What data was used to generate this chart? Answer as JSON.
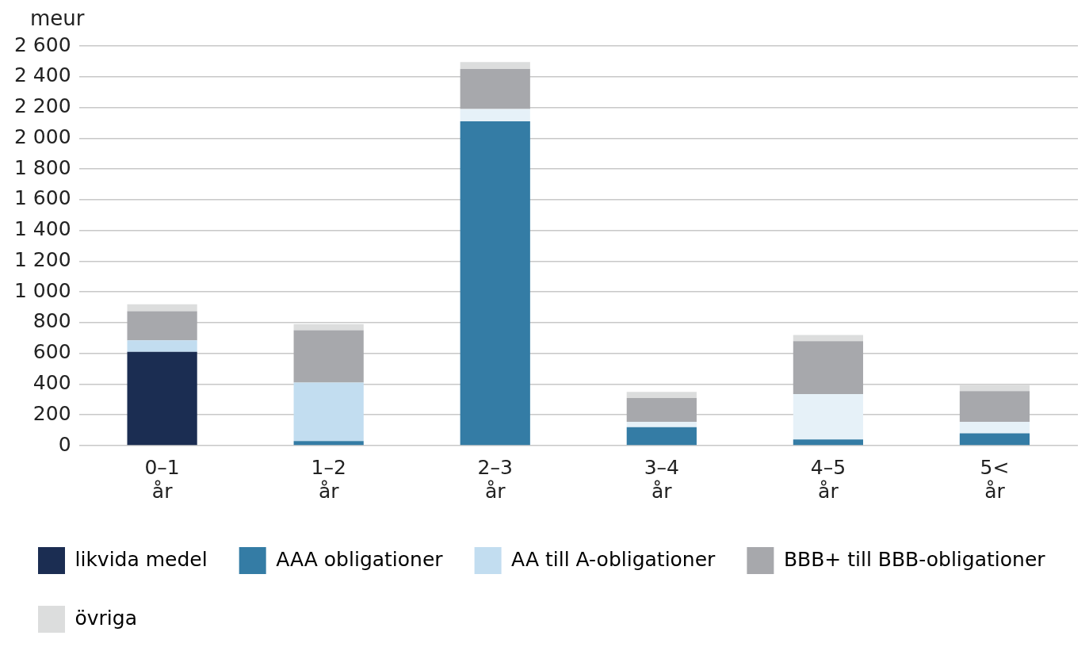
{
  "chart_data": {
    "type": "bar",
    "stacked": true,
    "ylabel": "meur",
    "categories": [
      "0–1 år",
      "1–2 år",
      "2–3 år",
      "3–4 år",
      "4–5 år",
      "5< år"
    ],
    "series": [
      {
        "name": "likvida medel",
        "color": "#1b2d52",
        "values": [
          610,
          null,
          null,
          null,
          null,
          null
        ]
      },
      {
        "name": "AAA obligationer",
        "color": "#347ca5",
        "values": [
          null,
          30,
          2110,
          120,
          40,
          80
        ]
      },
      {
        "name": "AA till A-obligationer",
        "color": "#c2ddf0",
        "colors": [
          "#c2ddf0",
          "#c2ddf0",
          "#e6f1f8",
          "#e6f1f8",
          "#e6f1f8",
          "#e6f1f8"
        ],
        "values": [
          75,
          380,
          80,
          35,
          295,
          75
        ]
      },
      {
        "name": "BBB+ till BBB-obligationer",
        "color": "#a7a8ac",
        "values": [
          190,
          340,
          260,
          155,
          345,
          200
        ]
      },
      {
        "name": "övriga",
        "color": "#dcdddd",
        "values": [
          45,
          40,
          45,
          40,
          40,
          40
        ]
      }
    ],
    "ylim": [
      0,
      2600
    ],
    "yticks": [
      {
        "value": 0,
        "label": "0"
      },
      {
        "value": 200,
        "label": "200"
      },
      {
        "value": 400,
        "label": "400"
      },
      {
        "value": 600,
        "label": "600"
      },
      {
        "value": 800,
        "label": "800"
      },
      {
        "value": 1000,
        "label": "1 000"
      },
      {
        "value": 1200,
        "label": "1 200"
      },
      {
        "value": 1400,
        "label": "1 400"
      },
      {
        "value": 1600,
        "label": "1 600"
      },
      {
        "value": 1800,
        "label": "1 800"
      },
      {
        "value": 2000,
        "label": "2 000"
      },
      {
        "value": 2200,
        "label": "2 200"
      },
      {
        "value": 2400,
        "label": "2 400"
      },
      {
        "value": 2600,
        "label": "2 600"
      }
    ],
    "grid": "y",
    "legend": "bottom"
  }
}
